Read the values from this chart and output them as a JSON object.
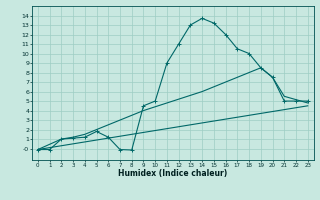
{
  "xlabel": "Humidex (Indice chaleur)",
  "ylabel": "",
  "xlim": [
    -0.5,
    23.5
  ],
  "ylim": [
    -1.2,
    15.0
  ],
  "xticks": [
    0,
    1,
    2,
    3,
    4,
    5,
    6,
    7,
    8,
    9,
    10,
    11,
    12,
    13,
    14,
    15,
    16,
    17,
    18,
    19,
    20,
    21,
    22,
    23
  ],
  "yticks": [
    0,
    1,
    2,
    3,
    4,
    5,
    6,
    7,
    8,
    9,
    10,
    11,
    12,
    13,
    14
  ],
  "ytick_labels": [
    "-0",
    "1",
    "2",
    "3",
    "4",
    "5",
    "6",
    "7",
    "8",
    "9",
    "10",
    "11",
    "12",
    "13",
    "14"
  ],
  "bg_color": "#c8e8e0",
  "grid_color": "#9ecec4",
  "line_color": "#006868",
  "line1_x": [
    0,
    1,
    2,
    3,
    4,
    5,
    6,
    7,
    8,
    9,
    10,
    11,
    12,
    13,
    14,
    15,
    16,
    17,
    18,
    19,
    20,
    21,
    22,
    23
  ],
  "line1_y": [
    -0.1,
    -0.1,
    1.0,
    1.1,
    1.2,
    1.8,
    1.2,
    -0.1,
    -0.15,
    4.5,
    5.0,
    9.0,
    11.0,
    13.0,
    13.7,
    13.2,
    12.0,
    10.5,
    10.0,
    8.5,
    7.5,
    5.0,
    5.0,
    5.0
  ],
  "line2_x": [
    0,
    2,
    3,
    4,
    5,
    9,
    14,
    19,
    20,
    21,
    23
  ],
  "line2_y": [
    -0.1,
    1.0,
    1.2,
    1.5,
    2.0,
    4.0,
    6.0,
    8.5,
    7.5,
    5.5,
    4.8
  ],
  "line3_x": [
    0,
    23
  ],
  "line3_y": [
    -0.1,
    4.5
  ]
}
